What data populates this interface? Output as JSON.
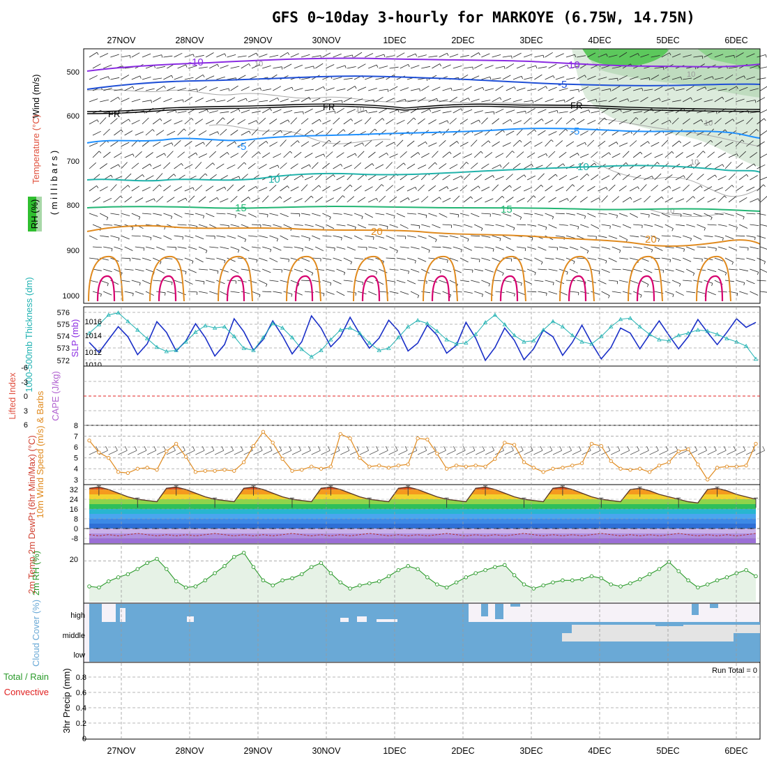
{
  "title": "GFS 0~10day 3-hourly for MARKOYE (6.75W, 14.75N)",
  "dates": [
    "27NOV",
    "28NOV",
    "29NOV",
    "30NOV",
    "1DEC",
    "2DEC",
    "3DEC",
    "4DEC",
    "5DEC",
    "6DEC"
  ],
  "colors": {
    "temp_cool": "#8a2be2",
    "temp_blue": "#1f4fd6",
    "temp_sky": "#1e90ff",
    "temp_teal": "#20b2aa",
    "temp_green": "#22b573",
    "temp_orange": "#e08a1e",
    "temp_hot": "#d6006e",
    "rh_green": "#2fbf2f",
    "slp": "#1a2fc8",
    "thickness": "#20b2b2",
    "wind10m": "#e08a1e",
    "rh2m": "#2a9a2a",
    "cloud": "#6aa9d6",
    "lifted_zero": "#e02020"
  },
  "chart_data": [
    {
      "type": "heatmap",
      "name": "upper-air cross section",
      "ylabel_parts": [
        "Wind (m/s)",
        "Temperature (°C)",
        "RH (%)"
      ],
      "ylabel_unit": "( m i l l i b a r s )",
      "y_ticks": [
        500,
        600,
        700,
        800,
        900,
        1000
      ],
      "ylim": [
        460,
        1000
      ],
      "isotherm_labels": [
        {
          "level": 485,
          "labels": [
            "-10",
            "-10"
          ]
        },
        {
          "level": 525,
          "labels": [
            "-5",
            "-5"
          ]
        },
        {
          "level": 590,
          "labels": [
            "FR",
            "FR",
            "FR"
          ]
        },
        {
          "level": 660,
          "labels": [
            "-5",
            "-5"
          ]
        },
        {
          "level": 735,
          "labels": [
            "10",
            "10"
          ]
        },
        {
          "level": 795,
          "labels": [
            "15",
            "15"
          ]
        },
        {
          "level": 850,
          "labels": [
            "20",
            "20"
          ]
        }
      ],
      "rh_labels": [
        "10",
        "10",
        "10",
        "10",
        "10",
        "10"
      ]
    },
    {
      "type": "line",
      "name": "SLP and 1000-500mb thickness",
      "ylabel_left": "1000-500mb Thickness (dm)",
      "ylabel_right": "SLP (mb)",
      "thickness_ticks": [
        572,
        573,
        574,
        575,
        576
      ],
      "slp_ticks": [
        1010,
        1012,
        1014,
        1016
      ],
      "series": [
        {
          "name": "SLP",
          "axis": "slp",
          "values": [
            1013.2,
            1011.8,
            1013.6,
            1015.4,
            1014.0,
            1011.5,
            1013.0,
            1016.1,
            1014.6,
            1012.0,
            1013.4,
            1015.8,
            1013.9,
            1011.3,
            1012.9,
            1016.5,
            1014.7,
            1012.1,
            1013.6,
            1016.2,
            1014.1,
            1011.6,
            1013.3,
            1016.9,
            1015.2,
            1012.6,
            1014.0,
            1016.7,
            1014.4,
            1012.4,
            1013.8,
            1016.3,
            1014.8,
            1012.0,
            1013.1,
            1015.6,
            1014.2,
            1011.7,
            1012.8,
            1016.0,
            1013.8,
            1010.7,
            1012.5,
            1015.2,
            1013.5,
            1010.8,
            1012.3,
            1014.9,
            1014.0,
            1011.4,
            1013.2,
            1015.6,
            1013.1,
            1010.9,
            1012.5,
            1015.2,
            1014.5,
            1012.3,
            1014.3,
            1016.2,
            1014.2,
            1012.3,
            1014.0,
            1016.4,
            1014.6,
            1012.9,
            1014.6,
            1016.5,
            1015.3,
            1016.0
          ]
        },
        {
          "name": "Thickness",
          "axis": "thickness",
          "values": [
            574.6,
            575.4,
            576.3,
            576.5,
            575.7,
            574.9,
            574.1,
            573.3,
            572.9,
            573.0,
            573.8,
            574.7,
            575.3,
            575.1,
            575.2,
            574.3,
            573.2,
            573.0,
            574.2,
            575.5,
            575.1,
            574.2,
            573.1,
            572.4,
            573.0,
            574.0,
            574.9,
            575.1,
            574.6,
            573.7,
            573.0,
            573.2,
            574.2,
            575.2,
            575.8,
            575.5,
            574.8,
            574.0,
            573.6,
            573.7,
            574.5,
            575.6,
            576.3,
            575.4,
            574.4,
            573.8,
            573.9,
            574.9,
            575.7,
            575.2,
            574.4,
            573.8,
            573.6,
            574.3,
            575.2,
            575.9,
            576.0,
            575.2,
            574.5,
            574.0,
            573.9,
            574.4,
            574.6,
            574.9,
            574.8,
            574.5,
            574.1,
            573.8,
            573.4,
            572.2
          ]
        }
      ]
    },
    {
      "type": "line",
      "name": "CAPE and Lifted Index",
      "ylabel_left": "Lifted Index",
      "ylabel_right": "CAPE (J/kg)",
      "y_ticks": [
        "-6",
        "-3",
        "0",
        "3",
        "6"
      ]
    },
    {
      "type": "line",
      "name": "10m wind speed",
      "ylabel": "10m Wind Speed (m/s) & Barbs",
      "y_ticks": [
        3,
        4,
        5,
        6,
        7,
        8
      ],
      "ylim": [
        2.6,
        8
      ],
      "series": [
        {
          "name": "10m Wind Speed",
          "values": [
            6.6,
            5.5,
            5.0,
            3.7,
            3.6,
            4.0,
            4.1,
            3.9,
            5.6,
            6.3,
            5.1,
            3.7,
            3.8,
            3.8,
            3.9,
            3.8,
            4.6,
            6.1,
            7.4,
            6.4,
            4.9,
            3.8,
            3.9,
            4.2,
            4.0,
            4.2,
            7.2,
            6.8,
            5.0,
            4.2,
            4.3,
            4.1,
            4.3,
            4.4,
            6.8,
            6.7,
            5.4,
            4.0,
            4.3,
            4.2,
            4.3,
            4.2,
            4.9,
            6.4,
            6.2,
            4.6,
            4.1,
            3.7,
            4.0,
            4.1,
            4.3,
            4.5,
            6.3,
            6.1,
            4.7,
            4.0,
            3.9,
            4.0,
            3.7,
            4.3,
            4.6,
            5.6,
            5.8,
            4.4,
            3.0,
            4.1,
            4.2,
            4.2,
            4.3,
            6.3
          ]
        }
      ]
    },
    {
      "type": "area",
      "name": "2m temperature and dewpoint",
      "ylabel": "2m Temp 2m DewPt (6hr Min/Max) (°C)",
      "y_ticks": [
        -8,
        0,
        8,
        16,
        24,
        32
      ],
      "ylim": [
        -12,
        36
      ],
      "series": [
        {
          "name": "2m Temp",
          "values": [
            33,
            34,
            32,
            29,
            26,
            24,
            23,
            22,
            33,
            34,
            32,
            29,
            26,
            24,
            23,
            22,
            33,
            34,
            32,
            29,
            26,
            24,
            23,
            22,
            33,
            34,
            32,
            29,
            26,
            24,
            23,
            22,
            33,
            34,
            32,
            29,
            26,
            24,
            23,
            22,
            33,
            34,
            32,
            29,
            26,
            24,
            23,
            22,
            33,
            34,
            32,
            29,
            26,
            24,
            23,
            22,
            32,
            33,
            31,
            28,
            26,
            24,
            22,
            21,
            32,
            33,
            31,
            28,
            26,
            24
          ]
        },
        {
          "name": "2m DewPt",
          "values": [
            -5,
            -6,
            -5,
            -6,
            -5,
            -4,
            -5,
            -6,
            -5,
            -6,
            -5,
            -6,
            -5,
            -4,
            -5,
            -6,
            -5,
            -6,
            -5,
            -6,
            -5,
            -4,
            -5,
            -6,
            -5,
            -6,
            -5,
            -6,
            -5,
            -4,
            -5,
            -6,
            -5,
            -6,
            -5,
            -6,
            -5,
            -4,
            -5,
            -6,
            -5,
            -6,
            -5,
            -6,
            -5,
            -4,
            -5,
            -6,
            -5,
            -6,
            -5,
            -6,
            -5,
            -4,
            -5,
            -6,
            -5,
            -6,
            -5,
            -6,
            -5,
            -4,
            -5,
            -6,
            -5,
            -6,
            -5,
            -6,
            -5,
            -4
          ]
        }
      ]
    },
    {
      "type": "area",
      "name": "2m relative humidity",
      "ylabel": "2m RH (%)",
      "y_ticks": [
        20
      ],
      "ylim": [
        0,
        28
      ],
      "series": [
        {
          "name": "2m RH",
          "values": [
            7.5,
            7,
            10,
            12,
            13.5,
            16,
            19,
            21,
            16,
            10,
            7,
            7.5,
            10.5,
            14,
            17.5,
            22,
            24,
            17,
            10.5,
            8,
            10.5,
            11.5,
            13.5,
            17,
            19,
            14,
            9.5,
            6.5,
            8,
            9,
            10,
            12.5,
            15.5,
            17.5,
            16,
            12,
            8.5,
            7,
            9.5,
            12,
            14,
            15.5,
            17,
            18,
            13,
            8.5,
            6.5,
            8,
            9.5,
            10.5,
            10.5,
            11,
            12.5,
            11.5,
            8.5,
            7.5,
            9,
            11,
            13.5,
            16,
            19.5,
            15,
            10.5,
            7,
            8.5,
            10.5,
            12,
            14,
            15.5,
            12.5
          ]
        }
      ]
    },
    {
      "type": "heatmap",
      "name": "cloud cover",
      "ylabel": "Cloud Cover (%)",
      "row_labels": [
        "high",
        "middle",
        "low"
      ]
    },
    {
      "type": "bar",
      "name": "3hr precipitation",
      "ylabel": "3hr Precip (mm)",
      "ylabel_left_1": "Total / Rain",
      "ylabel_left_2": "Convective",
      "y_ticks": [
        "0",
        "0.2",
        "0.4",
        "0.6",
        "0.8"
      ],
      "ylim": [
        0,
        1
      ],
      "run_total_label": "Run Total = 0",
      "values": []
    }
  ]
}
